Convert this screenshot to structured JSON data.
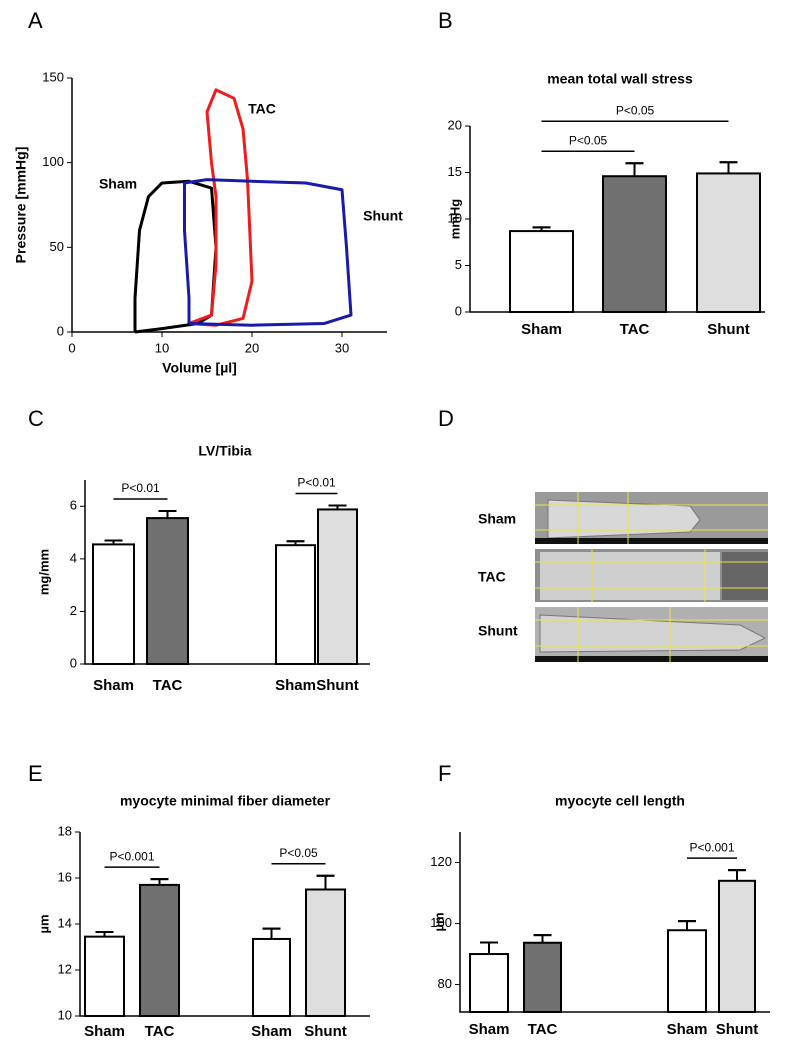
{
  "chart_data": [
    {
      "type": "line",
      "panel": "A",
      "xlabel": "Volume [µl]",
      "ylabel": "Pressure [mmHg]",
      "xlim": [
        0,
        35
      ],
      "xticks": [
        0,
        10,
        20,
        30
      ],
      "ylim": [
        0,
        150
      ],
      "yticks": [
        0,
        50,
        100,
        150
      ],
      "series": [
        {
          "name": "Sham",
          "color": "#000000",
          "x": [
            7,
            10,
            14,
            15.5,
            16,
            15.5,
            13,
            10,
            8.5,
            7.5,
            7,
            7
          ],
          "values": [
            0,
            2,
            5,
            10,
            50,
            85,
            89,
            88,
            80,
            60,
            20,
            0
          ]
        },
        {
          "name": "TAC",
          "color": "#ee1c1c",
          "x": [
            13,
            16,
            19,
            20,
            19.5,
            19,
            18,
            16,
            15,
            15.5,
            16,
            16,
            15.5,
            13
          ],
          "values": [
            5,
            4,
            8,
            30,
            90,
            120,
            138,
            143,
            130,
            100,
            80,
            40,
            10,
            5
          ]
        },
        {
          "name": "Shunt",
          "color": "#1a1aa8",
          "x": [
            13,
            20,
            28,
            31,
            30.5,
            30,
            26,
            20,
            15,
            12.5,
            12.5,
            13,
            13
          ],
          "values": [
            5,
            4,
            5,
            10,
            50,
            84,
            88,
            89,
            90,
            88,
            60,
            20,
            5
          ]
        }
      ]
    },
    {
      "type": "bar",
      "panel": "B",
      "title": "mean total wall stress",
      "ylabel": "mmHg",
      "categories": [
        "Sham",
        "TAC",
        "Shunt"
      ],
      "values": [
        8.7,
        14.6,
        14.9
      ],
      "errors": [
        0.4,
        1.4,
        1.2
      ],
      "colors": [
        "#ffffff",
        "#707070",
        "#dedede"
      ],
      "ylim": [
        0,
        20
      ],
      "yticks": [
        0,
        5,
        10,
        15,
        20
      ],
      "significance": [
        {
          "label": "P<0.05",
          "between": [
            0,
            1
          ]
        },
        {
          "label": "P<0.05",
          "between": [
            0,
            2
          ]
        }
      ]
    },
    {
      "type": "bar",
      "panel": "C",
      "title": "LV/Tibia",
      "ylabel": "mg/mm",
      "categories": [
        "Sham",
        "TAC",
        "Sham",
        "Shunt"
      ],
      "values": [
        4.55,
        5.55,
        4.52,
        5.88
      ],
      "errors": [
        0.15,
        0.27,
        0.15,
        0.15
      ],
      "colors": [
        "#ffffff",
        "#707070",
        "#ffffff",
        "#dedede"
      ],
      "ylim": [
        0,
        7
      ],
      "yticks": [
        0,
        2,
        4,
        6
      ],
      "significance": [
        {
          "label": "P<0.01",
          "between": [
            0,
            1
          ]
        },
        {
          "label": "P<0.01",
          "between": [
            2,
            3
          ]
        }
      ]
    },
    {
      "type": "bar",
      "panel": "E",
      "title": "myocyte minimal fiber diameter",
      "ylabel": "µm",
      "categories": [
        "Sham",
        "TAC",
        "Sham",
        "Shunt"
      ],
      "values": [
        13.45,
        15.7,
        13.35,
        15.5
      ],
      "errors": [
        0.2,
        0.25,
        0.45,
        0.6
      ],
      "colors": [
        "#ffffff",
        "#707070",
        "#ffffff",
        "#dedede"
      ],
      "ylim": [
        10,
        18
      ],
      "yticks": [
        10,
        12,
        14,
        16,
        18
      ],
      "significance": [
        {
          "label": "P<0.001",
          "between": [
            0,
            1
          ]
        },
        {
          "label": "P<0.05",
          "between": [
            2,
            3
          ]
        }
      ]
    },
    {
      "type": "bar",
      "panel": "F",
      "title": "myocyte cell length",
      "ylabel": "µm",
      "categories": [
        "Sham",
        "TAC",
        "Sham",
        "Shunt"
      ],
      "values": [
        90,
        93.7,
        97.8,
        114
      ],
      "errors": [
        3.8,
        2.5,
        3,
        3.5
      ],
      "colors": [
        "#ffffff",
        "#707070",
        "#ffffff",
        "#dedede"
      ],
      "ylim": [
        71,
        130
      ],
      "yticks": [
        80,
        100,
        120
      ],
      "significance": [
        {
          "label": "P<0.001",
          "between": [
            2,
            3
          ]
        }
      ]
    }
  ],
  "image_panel": {
    "panel": "D",
    "rows": [
      "Sham",
      "TAC",
      "Shunt"
    ]
  }
}
